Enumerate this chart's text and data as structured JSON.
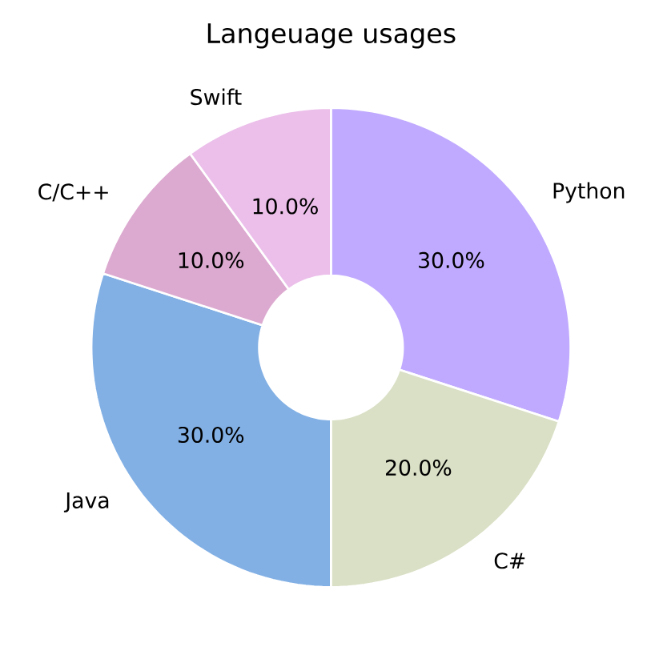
{
  "chart_data": {
    "type": "donut",
    "title": "Langeuage usages",
    "categories": [
      "Python",
      "C#",
      "Java",
      "C/C++",
      "Swift"
    ],
    "values": [
      30,
      20,
      30,
      10,
      10
    ],
    "value_labels": [
      "30.0%",
      "20.0%",
      "30.0%",
      "10.0%",
      "10.0%"
    ],
    "colors": [
      "#c0aaff",
      "#d9e0c5",
      "#82b0e5",
      "#dcaad0",
      "#ebbfea"
    ]
  }
}
